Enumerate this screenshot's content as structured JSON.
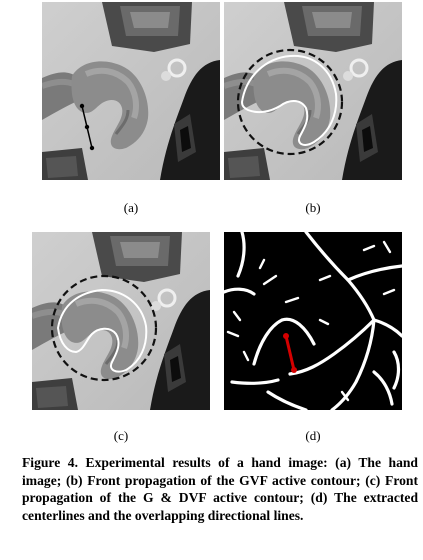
{
  "figure": {
    "panels": [
      {
        "id": "a",
        "label": "(a)",
        "description": "hand image"
      },
      {
        "id": "b",
        "label": "(b)",
        "description": "GVF active contour"
      },
      {
        "id": "c",
        "label": "(c)",
        "description": "G & DVF active contour"
      },
      {
        "id": "d",
        "label": "(d)",
        "description": "extracted centerlines"
      }
    ],
    "caption": "Figure 4. Experimental results of a hand image: (a) The hand image; (b) Front propagation of the GVF active contour; (c) Front propagation of the G & DVF active contour; (d) The extracted centerlines and the overlapping directional lines.",
    "colors": {
      "line": "#000000",
      "contour": "#ffffff",
      "direction": "#d40000",
      "background_d": "#000000"
    }
  }
}
